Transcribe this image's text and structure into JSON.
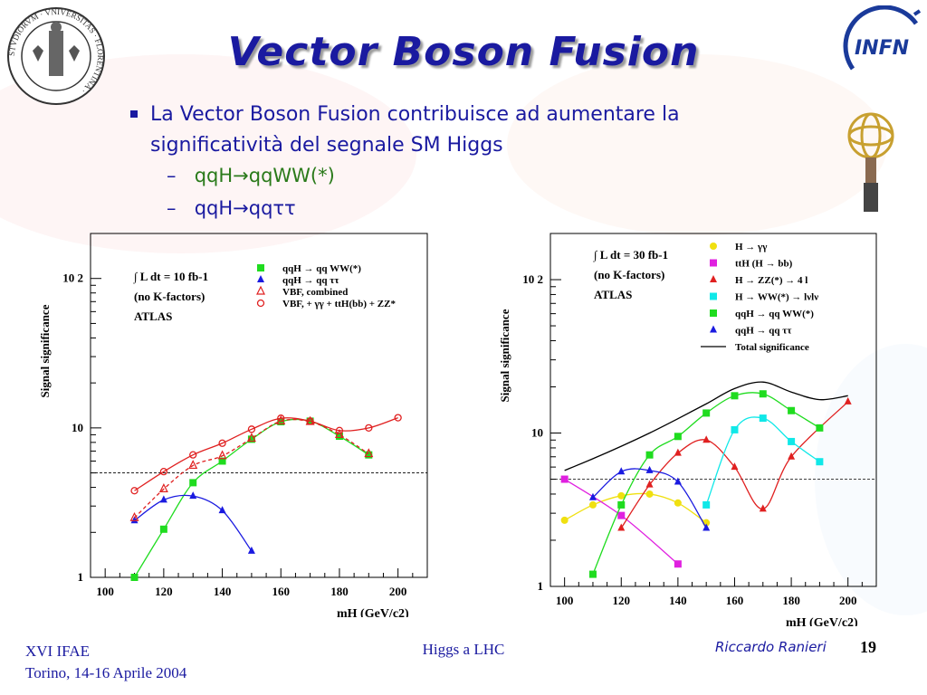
{
  "slide": {
    "title": "Vector Boson Fusion",
    "bullet": "La Vector Boson Fusion contribuisce ad aumentare la significatività del segnale SM Higgs",
    "sub1": "qqH→qqWW(*)",
    "sub2": "qqH→qqττ",
    "colors": {
      "title": "#1a1aa0",
      "sub1": "#2a7a1a",
      "text": "#1a1aa0"
    },
    "logos": {
      "left": "stvdiorvm-florentina-seal-icon",
      "right_top": "infn-logo-icon",
      "right": "atlas-figure-icon"
    }
  },
  "footer": {
    "conference": "XVI IFAE",
    "place_date": "Torino, 14-16 Aprile 2004",
    "topic": "Higgs a LHC",
    "author": "Riccardo Ranieri",
    "page": "19"
  },
  "chart_data": [
    {
      "type": "scatter",
      "ylabel": "Signal significance",
      "xlabel": "mH (GeV/c2)",
      "xlim": [
        95,
        210
      ],
      "ylim": [
        1,
        200
      ],
      "yscale": "log",
      "x_ticks": [
        "100",
        "120",
        "140",
        "160",
        "180",
        "200"
      ],
      "y_ticks": [
        {
          "value": 1,
          "label": "1"
        },
        {
          "value": 10,
          "label": "10"
        },
        {
          "value": 100,
          "label": "10 2"
        }
      ],
      "reference_line": 5,
      "annotations": [
        "∫ L dt = 10 fb-1",
        "(no K-factors)",
        "ATLAS"
      ],
      "series": [
        {
          "name": "qqH → qq WW(*)",
          "color": "#1fdc1f",
          "marker": "square",
          "line": "solid",
          "x": [
            110,
            120,
            130,
            140,
            150,
            160,
            170,
            180,
            190
          ],
          "y": [
            0.9,
            2.1,
            4.3,
            6.0,
            8.4,
            11.0,
            11.1,
            8.8,
            6.6
          ]
        },
        {
          "name": "qqH → qq ττ",
          "color": "#1a1ae0",
          "marker": "triangle",
          "line": "solid",
          "x": [
            110,
            120,
            130,
            140,
            150
          ],
          "y": [
            2.4,
            3.3,
            3.5,
            2.8,
            1.5
          ]
        },
        {
          "name": "VBF, combined",
          "color": "#e02020",
          "marker": "triangle-open",
          "line": "dashed",
          "x": [
            110,
            120,
            130,
            140,
            150,
            160,
            170,
            180,
            190
          ],
          "y": [
            2.5,
            3.9,
            5.6,
            6.5,
            8.5,
            11.1,
            11.0,
            9.0,
            6.7
          ]
        },
        {
          "name": "VBF, + γγ + ttH(bb) + ZZ*",
          "color": "#e02020",
          "marker": "circle-open",
          "line": "solid",
          "x": [
            110,
            120,
            130,
            140,
            150,
            160,
            170,
            180,
            190,
            200
          ],
          "y": [
            3.8,
            5.1,
            6.6,
            7.9,
            9.8,
            11.6,
            11.1,
            9.6,
            10.0,
            11.7
          ]
        }
      ]
    },
    {
      "type": "scatter",
      "ylabel": "Signal significance",
      "xlabel": "mH (GeV/c2)",
      "xlim": [
        95,
        210
      ],
      "ylim": [
        1,
        200
      ],
      "yscale": "log",
      "x_ticks": [
        "100",
        "120",
        "140",
        "160",
        "180",
        "200"
      ],
      "y_ticks": [
        {
          "value": 1,
          "label": "1"
        },
        {
          "value": 10,
          "label": "10"
        },
        {
          "value": 100,
          "label": "10 2"
        }
      ],
      "reference_line": 5,
      "annotations": [
        "∫ L dt = 30 fb-1",
        "(no K-factors)",
        "ATLAS"
      ],
      "series": [
        {
          "name": "H → γγ",
          "color": "#f0e010",
          "marker": "circle",
          "line": "solid",
          "x": [
            100,
            110,
            120,
            130,
            140,
            150
          ],
          "y": [
            2.7,
            3.4,
            3.9,
            4.0,
            3.5,
            2.6
          ]
        },
        {
          "name": "ttH (H → bb)",
          "color": "#e020e0",
          "marker": "square",
          "line": "solid",
          "x": [
            100,
            120,
            140
          ],
          "y": [
            5.0,
            2.9,
            1.4
          ]
        },
        {
          "name": "H → ZZ(*) → 4 l",
          "color": "#e02020",
          "marker": "triangle",
          "line": "solid",
          "x": [
            120,
            130,
            140,
            150,
            160,
            170,
            180,
            200
          ],
          "y": [
            2.4,
            4.6,
            7.4,
            9.0,
            6.0,
            3.2,
            7.0,
            16.0
          ]
        },
        {
          "name": "H → WW(*) → lνlν",
          "color": "#10e8e8",
          "marker": "square",
          "line": "solid",
          "x": [
            150,
            160,
            170,
            180,
            190
          ],
          "y": [
            3.4,
            10.5,
            12.5,
            8.8,
            6.5
          ]
        },
        {
          "name": "qqH → qq WW(*)",
          "color": "#1fdc1f",
          "marker": "square",
          "line": "solid",
          "x": [
            110,
            120,
            130,
            140,
            150,
            160,
            170,
            180,
            190
          ],
          "y": [
            1.2,
            3.4,
            7.2,
            9.5,
            13.5,
            17.5,
            18.0,
            14.0,
            10.8
          ]
        },
        {
          "name": "qqH → qq ττ",
          "color": "#1a1ae0",
          "marker": "triangle",
          "line": "solid",
          "x": [
            110,
            120,
            130,
            140,
            150
          ],
          "y": [
            3.8,
            5.6,
            5.7,
            4.8,
            2.4
          ]
        },
        {
          "name": "Total significance",
          "color": "#000000",
          "marker": "none",
          "line": "solid",
          "x": [
            100,
            110,
            120,
            130,
            140,
            150,
            160,
            170,
            180,
            190,
            200
          ],
          "y": [
            5.7,
            6.8,
            8.2,
            10.0,
            12.4,
            15.5,
            19.5,
            21.5,
            18.5,
            16.5,
            17.5
          ]
        }
      ]
    }
  ]
}
